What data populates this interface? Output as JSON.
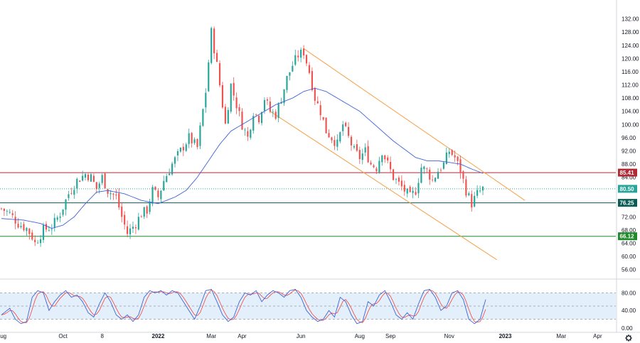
{
  "colors": {
    "up": "#26a69a",
    "down": "#ef5350",
    "ma": "#3f63d9",
    "channel": "#f5a04a",
    "resistance": "#b22833",
    "current": "#26a69a",
    "support_76": "#0c5b54",
    "support_66": "#1f8a2b",
    "stoch_k": "#3f63d9",
    "stoch_d": "#ef5350",
    "stoch_band": "#e3f0fb"
  },
  "icons": {
    "settings": "gear-icon"
  },
  "chart_data": {
    "type": "candlestick",
    "price_axis": {
      "range": [
        54,
        133
      ],
      "ticks": [
        "132.00",
        "128.00",
        "124.00",
        "120.00",
        "116.00",
        "112.00",
        "108.00",
        "104.00",
        "100.00",
        "96.00",
        "92.00",
        "88.00",
        "84.00",
        "80.00",
        "76.00",
        "72.00",
        "68.00",
        "64.00",
        "60.00",
        "56.00"
      ]
    },
    "time_axis": {
      "ticks": [
        "Aug",
        "Oct",
        "8",
        "2022",
        "Mar",
        "Apr",
        "Jun",
        "Aug",
        "Sep",
        "Nov",
        "2023",
        "Mar",
        "Apr"
      ],
      "tick_index": [
        0,
        22,
        36,
        56,
        75,
        86,
        107,
        128,
        139,
        160,
        180,
        200,
        213
      ]
    },
    "visible_bars": 220,
    "levels": [
      {
        "value": 85.41,
        "label": "85.41",
        "style": "solid",
        "color_key": "resistance"
      },
      {
        "value": 80.5,
        "label": "80.50",
        "style": "dotted",
        "color_key": "current"
      },
      {
        "value": 76.25,
        "label": "76.25",
        "style": "solid",
        "color_key": "support_76"
      },
      {
        "value": 66.12,
        "label": "66.12",
        "style": "solid",
        "color_key": "support_66"
      }
    ],
    "channel": {
      "upper": {
        "start": [
          108,
          123
        ],
        "end": [
          187,
          77
        ]
      },
      "lower": {
        "start": [
          96,
          104
        ],
        "end": [
          177,
          59
        ]
      }
    },
    "close_path": [
      [
        0,
        74.5
      ],
      [
        3,
        73
      ],
      [
        6,
        70
      ],
      [
        9,
        68.5
      ],
      [
        11,
        66
      ],
      [
        12,
        64
      ],
      [
        15,
        68
      ],
      [
        18,
        69
      ],
      [
        21,
        73
      ],
      [
        24,
        79
      ],
      [
        27,
        83
      ],
      [
        30,
        85
      ],
      [
        32,
        84
      ],
      [
        34,
        80.5
      ],
      [
        36,
        84
      ],
      [
        38,
        80
      ],
      [
        41,
        78
      ],
      [
        43,
        72
      ],
      [
        45,
        67
      ],
      [
        48,
        70
      ],
      [
        50,
        73
      ],
      [
        52,
        74
      ],
      [
        54,
        80
      ],
      [
        56,
        78
      ],
      [
        58,
        83
      ],
      [
        61,
        88
      ],
      [
        64,
        92
      ],
      [
        67,
        96
      ],
      [
        70,
        93
      ],
      [
        73,
        110
      ],
      [
        75,
        128
      ],
      [
        77,
        118
      ],
      [
        80,
        100
      ],
      [
        82,
        112
      ],
      [
        84,
        106
      ],
      [
        86,
        100
      ],
      [
        88,
        96
      ],
      [
        90,
        104
      ],
      [
        92,
        102
      ],
      [
        94,
        108
      ],
      [
        96,
        104
      ],
      [
        98,
        103
      ],
      [
        100,
        108
      ],
      [
        102,
        114
      ],
      [
        104,
        118
      ],
      [
        106,
        121
      ],
      [
        108,
        122
      ],
      [
        110,
        116
      ],
      [
        112,
        108
      ],
      [
        114,
        104
      ],
      [
        116,
        98
      ],
      [
        118,
        96
      ],
      [
        120,
        94
      ],
      [
        122,
        100
      ],
      [
        124,
        96
      ],
      [
        126,
        92
      ],
      [
        128,
        90
      ],
      [
        130,
        92
      ],
      [
        132,
        88
      ],
      [
        134,
        87
      ],
      [
        136,
        92
      ],
      [
        138,
        88
      ],
      [
        140,
        84
      ],
      [
        142,
        82
      ],
      [
        144,
        80
      ],
      [
        146,
        78
      ],
      [
        148,
        80
      ],
      [
        150,
        87
      ],
      [
        152,
        86
      ],
      [
        154,
        83
      ],
      [
        156,
        86
      ],
      [
        158,
        88
      ],
      [
        160,
        92
      ],
      [
        162,
        90
      ],
      [
        164,
        86
      ],
      [
        166,
        80
      ],
      [
        168,
        76
      ],
      [
        170,
        79
      ],
      [
        172,
        80.5
      ]
    ],
    "ma50_path": [
      [
        0,
        71.5
      ],
      [
        8,
        71
      ],
      [
        14,
        70
      ],
      [
        18,
        68.5
      ],
      [
        22,
        69.5
      ],
      [
        26,
        72
      ],
      [
        30,
        76
      ],
      [
        34,
        79.5
      ],
      [
        38,
        80
      ],
      [
        44,
        79
      ],
      [
        50,
        77
      ],
      [
        56,
        76
      ],
      [
        62,
        78
      ],
      [
        66,
        80
      ],
      [
        70,
        84
      ],
      [
        74,
        89
      ],
      [
        78,
        94
      ],
      [
        82,
        98
      ],
      [
        86,
        100
      ],
      [
        92,
        103
      ],
      [
        98,
        106
      ],
      [
        104,
        108
      ],
      [
        108,
        110
      ],
      [
        112,
        111
      ],
      [
        116,
        110
      ],
      [
        120,
        108
      ],
      [
        124,
        106
      ],
      [
        128,
        104
      ],
      [
        132,
        101
      ],
      [
        136,
        98
      ],
      [
        140,
        95
      ],
      [
        144,
        92.5
      ],
      [
        148,
        90
      ],
      [
        152,
        89
      ],
      [
        156,
        89
      ],
      [
        160,
        88.5
      ],
      [
        164,
        88
      ],
      [
        168,
        86.5
      ],
      [
        172,
        85.2
      ]
    ],
    "stochastic": {
      "range": [
        0,
        100
      ],
      "ticks": [
        "80.00",
        "40.00",
        "0.00"
      ],
      "band": [
        20,
        80
      ],
      "k_path": [
        [
          0,
          30
        ],
        [
          3,
          45
        ],
        [
          5,
          20
        ],
        [
          7,
          10
        ],
        [
          9,
          15
        ],
        [
          11,
          70
        ],
        [
          13,
          85
        ],
        [
          15,
          80
        ],
        [
          17,
          40
        ],
        [
          19,
          60
        ],
        [
          21,
          75
        ],
        [
          23,
          85
        ],
        [
          25,
          70
        ],
        [
          27,
          75
        ],
        [
          29,
          60
        ],
        [
          31,
          35
        ],
        [
          33,
          25
        ],
        [
          35,
          55
        ],
        [
          37,
          80
        ],
        [
          39,
          60
        ],
        [
          41,
          30
        ],
        [
          43,
          20
        ],
        [
          45,
          30
        ],
        [
          47,
          15
        ],
        [
          49,
          30
        ],
        [
          51,
          70
        ],
        [
          53,
          85
        ],
        [
          55,
          80
        ],
        [
          57,
          85
        ],
        [
          59,
          75
        ],
        [
          61,
          85
        ],
        [
          63,
          80
        ],
        [
          65,
          60
        ],
        [
          67,
          40
        ],
        [
          69,
          20
        ],
        [
          71,
          50
        ],
        [
          73,
          85
        ],
        [
          75,
          88
        ],
        [
          77,
          60
        ],
        [
          79,
          30
        ],
        [
          81,
          15
        ],
        [
          83,
          25
        ],
        [
          85,
          60
        ],
        [
          87,
          80
        ],
        [
          89,
          75
        ],
        [
          91,
          85
        ],
        [
          93,
          60
        ],
        [
          95,
          75
        ],
        [
          97,
          85
        ],
        [
          99,
          80
        ],
        [
          101,
          70
        ],
        [
          103,
          85
        ],
        [
          105,
          88
        ],
        [
          107,
          70
        ],
        [
          109,
          40
        ],
        [
          111,
          25
        ],
        [
          113,
          15
        ],
        [
          115,
          20
        ],
        [
          117,
          40
        ],
        [
          119,
          25
        ],
        [
          121,
          70
        ],
        [
          123,
          60
        ],
        [
          125,
          30
        ],
        [
          127,
          10
        ],
        [
          129,
          15
        ],
        [
          131,
          60
        ],
        [
          133,
          50
        ],
        [
          135,
          75
        ],
        [
          137,
          85
        ],
        [
          139,
          60
        ],
        [
          141,
          30
        ],
        [
          143,
          20
        ],
        [
          145,
          35
        ],
        [
          147,
          20
        ],
        [
          149,
          55
        ],
        [
          151,
          85
        ],
        [
          153,
          88
        ],
        [
          155,
          70
        ],
        [
          157,
          40
        ],
        [
          159,
          50
        ],
        [
          161,
          80
        ],
        [
          163,
          85
        ],
        [
          165,
          65
        ],
        [
          167,
          20
        ],
        [
          169,
          10
        ],
        [
          171,
          20
        ],
        [
          173,
          65
        ]
      ]
    }
  }
}
